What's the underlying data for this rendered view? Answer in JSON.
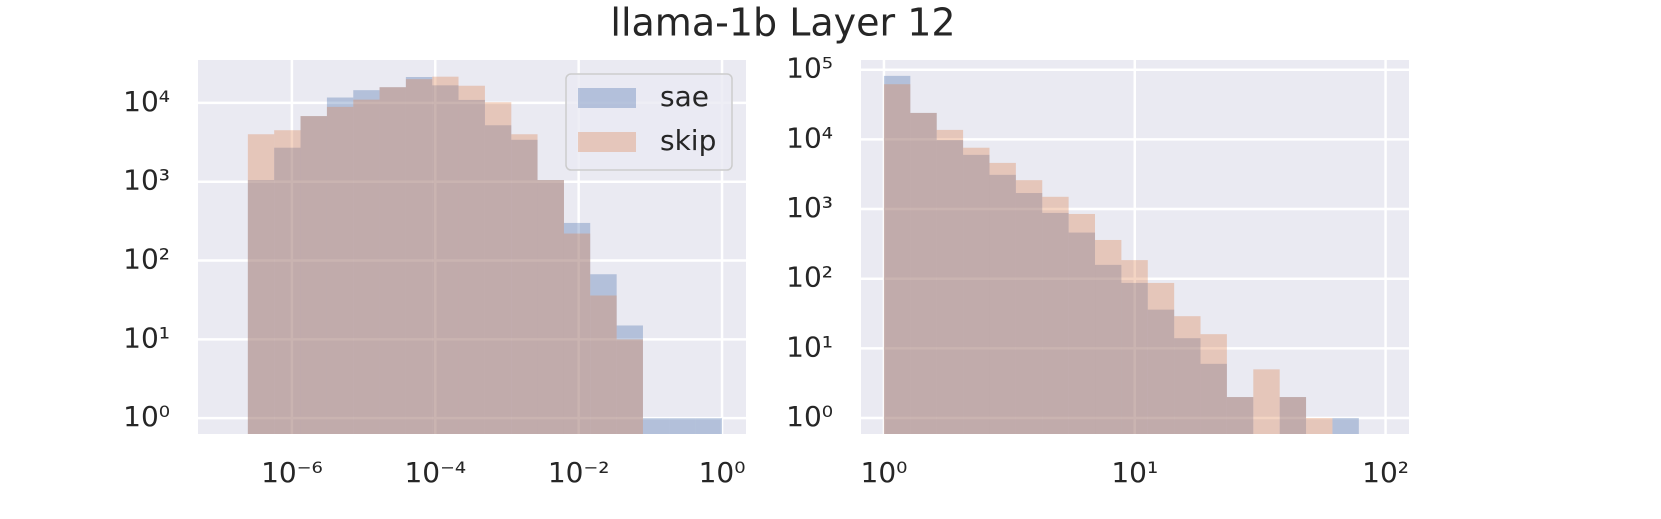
{
  "title": "llama-1b Layer 12",
  "chart_data": [
    {
      "type": "histogram",
      "xscale": "log",
      "yscale": "log",
      "grid": true,
      "legend": "upper right",
      "opacity": 0.35,
      "bins": [
        2.43e-07,
        5.66e-07,
        1.32e-06,
        3.08e-06,
        7.18e-06,
        1.67e-05,
        3.89e-05,
        9.08e-05,
        0.000211,
        0.000493,
        0.00115,
        0.00267,
        0.00624,
        0.0145,
        0.0339,
        0.0789,
        0.184,
        0.429,
        1
      ],
      "series": [
        {
          "name": "sae",
          "color": "#4c72b0",
          "values": [
            1050,
            2700,
            6800,
            11700,
            14500,
            15800,
            21300,
            16700,
            10900,
            5200,
            3400,
            1050,
            300,
            67,
            15,
            1,
            1,
            1
          ]
        },
        {
          "name": "skip",
          "color": "#dd8452",
          "values": [
            4000,
            4500,
            6800,
            8900,
            11000,
            15800,
            20000,
            21500,
            16500,
            10200,
            4000,
            1050,
            220,
            36,
            10,
            0,
            0,
            0
          ]
        }
      ],
      "xlim": [
        4.9e-08,
        2.16
      ],
      "ylim": [
        0.63,
        35000
      ],
      "xticks": [
        {
          "value": 1e-06,
          "label": "10⁻⁶"
        },
        {
          "value": 0.0001,
          "label": "10⁻⁴"
        },
        {
          "value": 0.01,
          "label": "10⁻²"
        },
        {
          "value": 1,
          "label": "10⁰"
        }
      ],
      "yticks": [
        {
          "value": 1,
          "label": "10⁰"
        },
        {
          "value": 10,
          "label": "10¹"
        },
        {
          "value": 100,
          "label": "10²"
        },
        {
          "value": 1000,
          "label": "10³"
        },
        {
          "value": 10000,
          "label": "10⁴"
        }
      ]
    },
    {
      "type": "histogram",
      "xscale": "log",
      "yscale": "log",
      "grid": true,
      "opacity": 0.35,
      "bins": [
        1,
        1.274,
        1.623,
        2.068,
        2.635,
        3.357,
        4.277,
        5.449,
        6.942,
        8.845,
        11.27,
        14.36,
        18.29,
        23.3,
        29.69,
        37.83,
        48.19,
        61.4,
        78.23
      ],
      "series": [
        {
          "name": "sae",
          "color": "#4c72b0",
          "values": [
            81700,
            24000,
            9800,
            6000,
            3100,
            1700,
            880,
            460,
            158,
            87,
            36,
            14,
            6,
            2,
            0,
            2,
            0,
            1
          ]
        },
        {
          "name": "skip",
          "color": "#dd8452",
          "values": [
            62000,
            24000,
            13700,
            7600,
            4600,
            2600,
            1500,
            850,
            360,
            185,
            87,
            29,
            16,
            2,
            5,
            2,
            1,
            0
          ]
        }
      ],
      "xlim": [
        0.81,
        124
      ],
      "ylim": [
        0.59,
        138000
      ],
      "xticks": [
        {
          "value": 1,
          "label": "10⁰"
        },
        {
          "value": 10,
          "label": "10¹"
        },
        {
          "value": 100,
          "label": "10²"
        }
      ],
      "yticks": [
        {
          "value": 1,
          "label": "10⁰"
        },
        {
          "value": 10,
          "label": "10¹"
        },
        {
          "value": 100,
          "label": "10²"
        },
        {
          "value": 1000,
          "label": "10³"
        },
        {
          "value": 10000,
          "label": "10⁴"
        },
        {
          "value": 100000,
          "label": "10⁵"
        }
      ]
    }
  ]
}
